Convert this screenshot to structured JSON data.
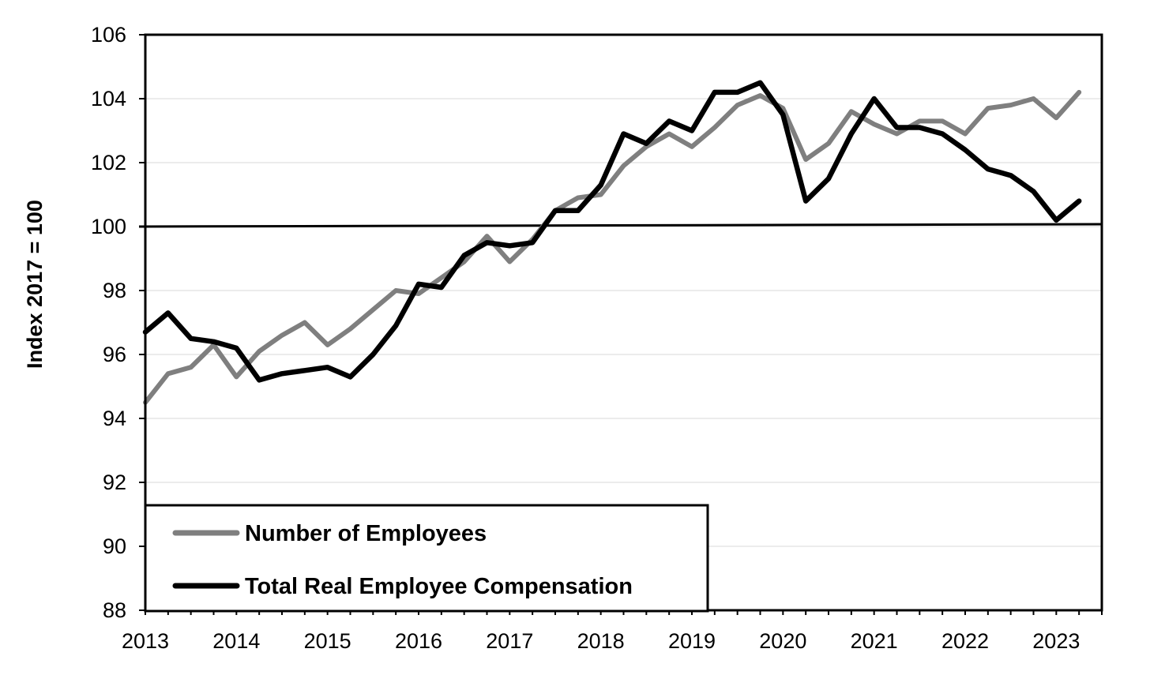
{
  "chart_data": {
    "type": "line",
    "title": "",
    "xlabel": "",
    "ylabel": "Index 2017 = 100",
    "ylim": [
      88,
      106
    ],
    "yticks": [
      88,
      90,
      92,
      94,
      96,
      98,
      100,
      102,
      104,
      106
    ],
    "xlim": [
      2013.0,
      2023.5
    ],
    "xticks": [
      2013,
      2014,
      2015,
      2016,
      2017,
      2018,
      2019,
      2020,
      2021,
      2022,
      2023
    ],
    "grid": true,
    "reference_line": 100,
    "legend_position": "bottom-left",
    "x": [
      2013.0,
      2013.25,
      2013.5,
      2013.75,
      2014.0,
      2014.25,
      2014.5,
      2014.75,
      2015.0,
      2015.25,
      2015.5,
      2015.75,
      2016.0,
      2016.25,
      2016.5,
      2016.75,
      2017.0,
      2017.25,
      2017.5,
      2017.75,
      2018.0,
      2018.25,
      2018.5,
      2018.75,
      2019.0,
      2019.25,
      2019.5,
      2019.75,
      2020.0,
      2020.25,
      2020.5,
      2020.75,
      2021.0,
      2021.25,
      2021.5,
      2021.75,
      2022.0,
      2022.25,
      2022.5,
      2022.75,
      2023.0,
      2023.25
    ],
    "series": [
      {
        "name": "Number of Employees",
        "color": "#7f7f7f",
        "values": [
          94.5,
          95.4,
          95.6,
          96.3,
          95.3,
          96.1,
          96.6,
          97.0,
          96.3,
          96.8,
          97.4,
          98.0,
          97.9,
          98.4,
          98.9,
          99.7,
          98.9,
          99.6,
          100.5,
          100.9,
          101.0,
          101.9,
          102.5,
          102.9,
          102.5,
          103.1,
          103.8,
          104.1,
          103.7,
          102.1,
          102.6,
          103.6,
          103.2,
          102.9,
          103.3,
          103.3,
          102.9,
          103.7,
          103.8,
          104.0,
          103.4,
          104.2
        ]
      },
      {
        "name": "Total Real Employee Compensation",
        "color": "#000000",
        "values": [
          96.7,
          97.3,
          96.5,
          96.4,
          96.2,
          95.2,
          95.4,
          95.5,
          95.6,
          95.3,
          96.0,
          96.9,
          98.2,
          98.1,
          99.1,
          99.5,
          99.4,
          99.5,
          100.5,
          100.5,
          101.3,
          102.9,
          102.6,
          103.3,
          103.0,
          104.2,
          104.2,
          104.5,
          103.5,
          100.8,
          101.5,
          102.9,
          104.0,
          103.1,
          103.1,
          102.9,
          102.4,
          101.8,
          101.6,
          101.1,
          100.2,
          100.8
        ]
      }
    ]
  }
}
